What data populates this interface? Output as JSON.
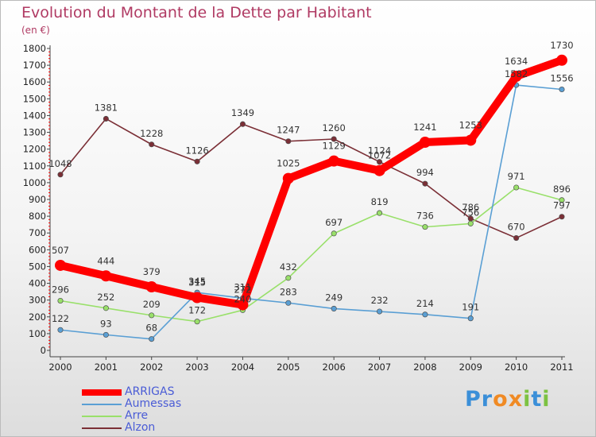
{
  "chart_data": {
    "type": "line",
    "title": "Evolution du Montant de la Dette par Habitant",
    "subtitle": "(en €)",
    "x": [
      "2000",
      "2001",
      "2002",
      "2003",
      "2004",
      "2005",
      "2006",
      "2007",
      "2008",
      "2009",
      "2010",
      "2011"
    ],
    "ylim": [
      0,
      1800
    ],
    "yticks": [
      0,
      100,
      200,
      300,
      400,
      500,
      600,
      700,
      800,
      900,
      1000,
      1100,
      1200,
      1300,
      1400,
      1500,
      1600,
      1700,
      1800
    ],
    "grid": false,
    "legend_position": "bottom-left",
    "series": [
      {
        "name": "ARRIGAS",
        "color": "#ff0000",
        "values": [
          507,
          444,
          379,
          315,
          272,
          1025,
          1129,
          1072,
          1241,
          1253,
          1634,
          1730
        ]
      },
      {
        "name": "Aumessas",
        "color": "#5a9fd4",
        "values": [
          122,
          93,
          68,
          345,
          311,
          283,
          249,
          232,
          214,
          191,
          1582,
          1556
        ]
      },
      {
        "name": "Arre",
        "color": "#99e06a",
        "values": [
          296,
          252,
          209,
          172,
          240,
          432,
          697,
          819,
          736,
          756,
          971,
          896
        ]
      },
      {
        "name": "Alzon",
        "color": "#7b2f36",
        "values": [
          1048,
          1381,
          1228,
          1126,
          1349,
          1247,
          1260,
          1124,
          994,
          786,
          670,
          797
        ]
      }
    ]
  },
  "legend": {
    "s0": "ARRIGAS",
    "s1": "Aumessas",
    "s2": "Arre",
    "s3": "Alzon"
  },
  "brand": {
    "name": "Proxiti",
    "letters": [
      "P",
      "r",
      "o",
      "x",
      "i",
      "t",
      "i"
    ],
    "colors": [
      "#3b8fd8",
      "#3b8fd8",
      "#f08a24",
      "#f08a24",
      "#7cc242",
      "#3b8fd8",
      "#7cc242"
    ]
  }
}
